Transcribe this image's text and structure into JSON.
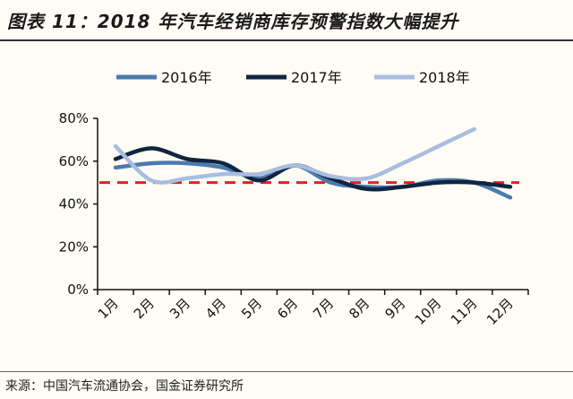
{
  "title": "图表 11：2018 年汽车经销商库存预警指数大幅提升",
  "source": "来源：中国汽车流通协会，国金证券研究所",
  "chart_data": {
    "type": "line",
    "categories": [
      "1月",
      "2月",
      "3月",
      "4月",
      "5月",
      "6月",
      "7月",
      "8月",
      "9月",
      "10月",
      "11月",
      "12月"
    ],
    "series": [
      {
        "name": "2016年",
        "color": "#4a7bb0",
        "values": [
          57,
          59,
          59,
          57,
          52,
          58,
          50,
          48,
          48,
          51,
          50,
          43
        ]
      },
      {
        "name": "2017年",
        "color": "#0f2540",
        "values": [
          61,
          66,
          61,
          59,
          51,
          58,
          52,
          47,
          48,
          50,
          50,
          48
        ]
      },
      {
        "name": "2018年",
        "color": "#a9bde0",
        "values": [
          67,
          51,
          52,
          54,
          54,
          58,
          53,
          52,
          59,
          67,
          75,
          null
        ]
      }
    ],
    "reference_line": {
      "value": 50,
      "color": "#e02020",
      "style": "dashed"
    },
    "yticks": [
      "0%",
      "20%",
      "40%",
      "60%",
      "80%"
    ],
    "ylim": [
      0,
      80
    ],
    "legend": "top",
    "grid": false
  }
}
